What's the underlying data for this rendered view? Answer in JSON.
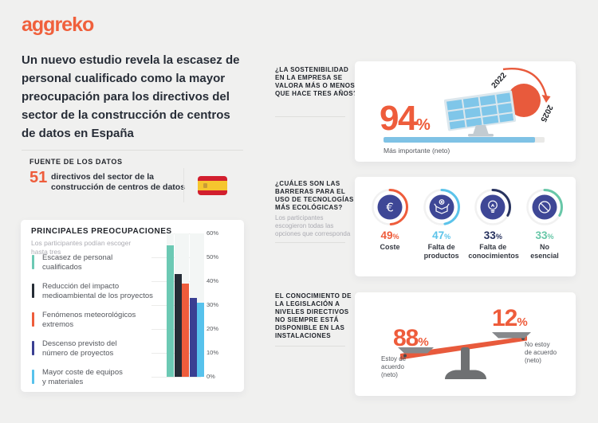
{
  "colors": {
    "accent_orange": "#EE5C3B",
    "icon_navy": "#3E4796",
    "dark_navy": "#28335F",
    "teal": "#6CC9B4",
    "light_blue": "#57C2EC",
    "bar_dark": "#252C36",
    "bar_navy": "#3A3F92",
    "progress_blue": "#7FC2E5",
    "page_bg": "#F0F0EF",
    "card_bg": "#FFFFFF"
  },
  "logo": {
    "text": "aggreko"
  },
  "headline": {
    "text": "Un nuevo estudio revela la escasez de\npersonal cualificado como la mayor\npreocupación para los directivos del\nsector de la construcción de centros\nde datos en España"
  },
  "source": {
    "heading": "FUENTE DE LOS DATOS",
    "count": "51",
    "description": "directivos del sector de la\nconstrucción de centros de datos",
    "flag_icon": "spain-flag-icon"
  },
  "concerns": {
    "heading": "PRINCIPALES PREOCUPACIONES",
    "note": "Los participantes podían escoger\nhasta tres"
  },
  "sustainability": {
    "question": "¿LA SOSTENIBILIDAD\nEN LA EMPRESA SE\nVALORA MÁS O MENOS\nQUE HACE TRES AÑOS?",
    "value": "94",
    "unit": "%",
    "caption": "Más importante (neto)",
    "year_start": "2022",
    "year_end": "2025",
    "progress_pct": 94
  },
  "barriers": {
    "question": "¿CUÁLES SON LAS\nBARRERAS PARA EL\nUSO DE TECNOLOGÍAS\nMÁS ECOLÓGICAS?",
    "note": "Los participantes\nescogieron todas las\nopciones que corresponda",
    "items": [
      {
        "value": 49,
        "unit": "%",
        "label": "Coste",
        "color": "#EE5C3B",
        "icon": "euro-icon"
      },
      {
        "value": 47,
        "unit": "%",
        "label": "Falta de\nproductos",
        "color": "#5BC3EA",
        "icon": "open-box-icon"
      },
      {
        "value": 33,
        "unit": "%",
        "label": "Falta de\nconocimientos",
        "color": "#28335F",
        "icon": "lightbulb-icon"
      },
      {
        "value": 33,
        "unit": "%",
        "label": "No\nesencial",
        "color": "#68C7A8",
        "icon": "ban-icon"
      }
    ]
  },
  "legislation": {
    "statement": "EL CONOCIMIENTO DE\nLA LEGISLACIÓN A\nNIVELES DIRECTIVOS\nNO SIEMPRE ESTÁ\nDISPONIBLE EN LAS\nINSTALACIONES",
    "agree": {
      "value": "88",
      "unit": "%",
      "label": "Estoy de\nacuerdo\n(neto)"
    },
    "disagree": {
      "value": "12",
      "unit": "%",
      "label": "No estoy\nde acuerdo\n(neto)"
    }
  },
  "chart_data": [
    {
      "type": "bar",
      "title": "PRINCIPALES PREOCUPACIONES",
      "subtitle": "Los participantes podían escoger hasta tres",
      "categories": [
        "Escasez de personal\ncualificados",
        "Reducción del impacto\nmedioambiental de los proyectos",
        "Fenómenos meteorológicos\nextremos",
        "Descenso previsto del\nnúmero de proyectos",
        "Mayor coste de equipos\ny materiales"
      ],
      "values": [
        55,
        43,
        39,
        33,
        31
      ],
      "unit": "%",
      "bar_colors": [
        "#6CC9B4",
        "#252C36",
        "#EE5C3B",
        "#3A3F92",
        "#57C2EC"
      ],
      "xlabel": "",
      "ylabel": "",
      "ylim": [
        0,
        60
      ],
      "yticks": [
        "60%",
        "50%",
        "40%",
        "30%",
        "20%",
        "10%",
        "0%"
      ],
      "grid": true,
      "legend_position": "left"
    },
    {
      "type": "bar",
      "title": "¿LA SOSTENIBILIDAD EN LA EMPRESA SE VALORA MÁS O MENOS QUE HACE TRES AÑOS?",
      "categories": [
        "Más importante (neto)"
      ],
      "values": [
        94
      ],
      "unit": "%"
    },
    {
      "type": "bar",
      "title": "¿CUÁLES SON LAS BARRERAS PARA EL USO DE TECNOLOGÍAS MÁS ECOLÓGICAS?",
      "categories": [
        "Coste",
        "Falta de productos",
        "Falta de conocimientos",
        "No esencial"
      ],
      "values": [
        49,
        47,
        33,
        33
      ],
      "unit": "%"
    },
    {
      "type": "bar",
      "title": "EL CONOCIMIENTO DE LA LEGISLACIÓN A NIVELES DIRECTIVOS NO SIEMPRE ESTÁ DISPONIBLE EN LAS INSTALACIONES",
      "categories": [
        "Estoy de acuerdo (neto)",
        "No estoy de acuerdo (neto)"
      ],
      "values": [
        88,
        12
      ],
      "unit": "%"
    }
  ]
}
